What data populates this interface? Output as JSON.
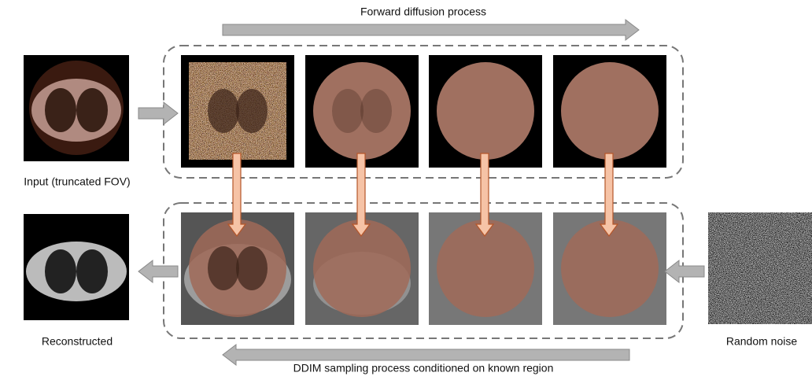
{
  "title": "Forward diffusion process",
  "bottom_caption": "DDIM sampling process conditioned on known region",
  "input_label": "Input (truncated FOV)",
  "output_label": "Reconstructed",
  "noise_label": "Random noise"
}
